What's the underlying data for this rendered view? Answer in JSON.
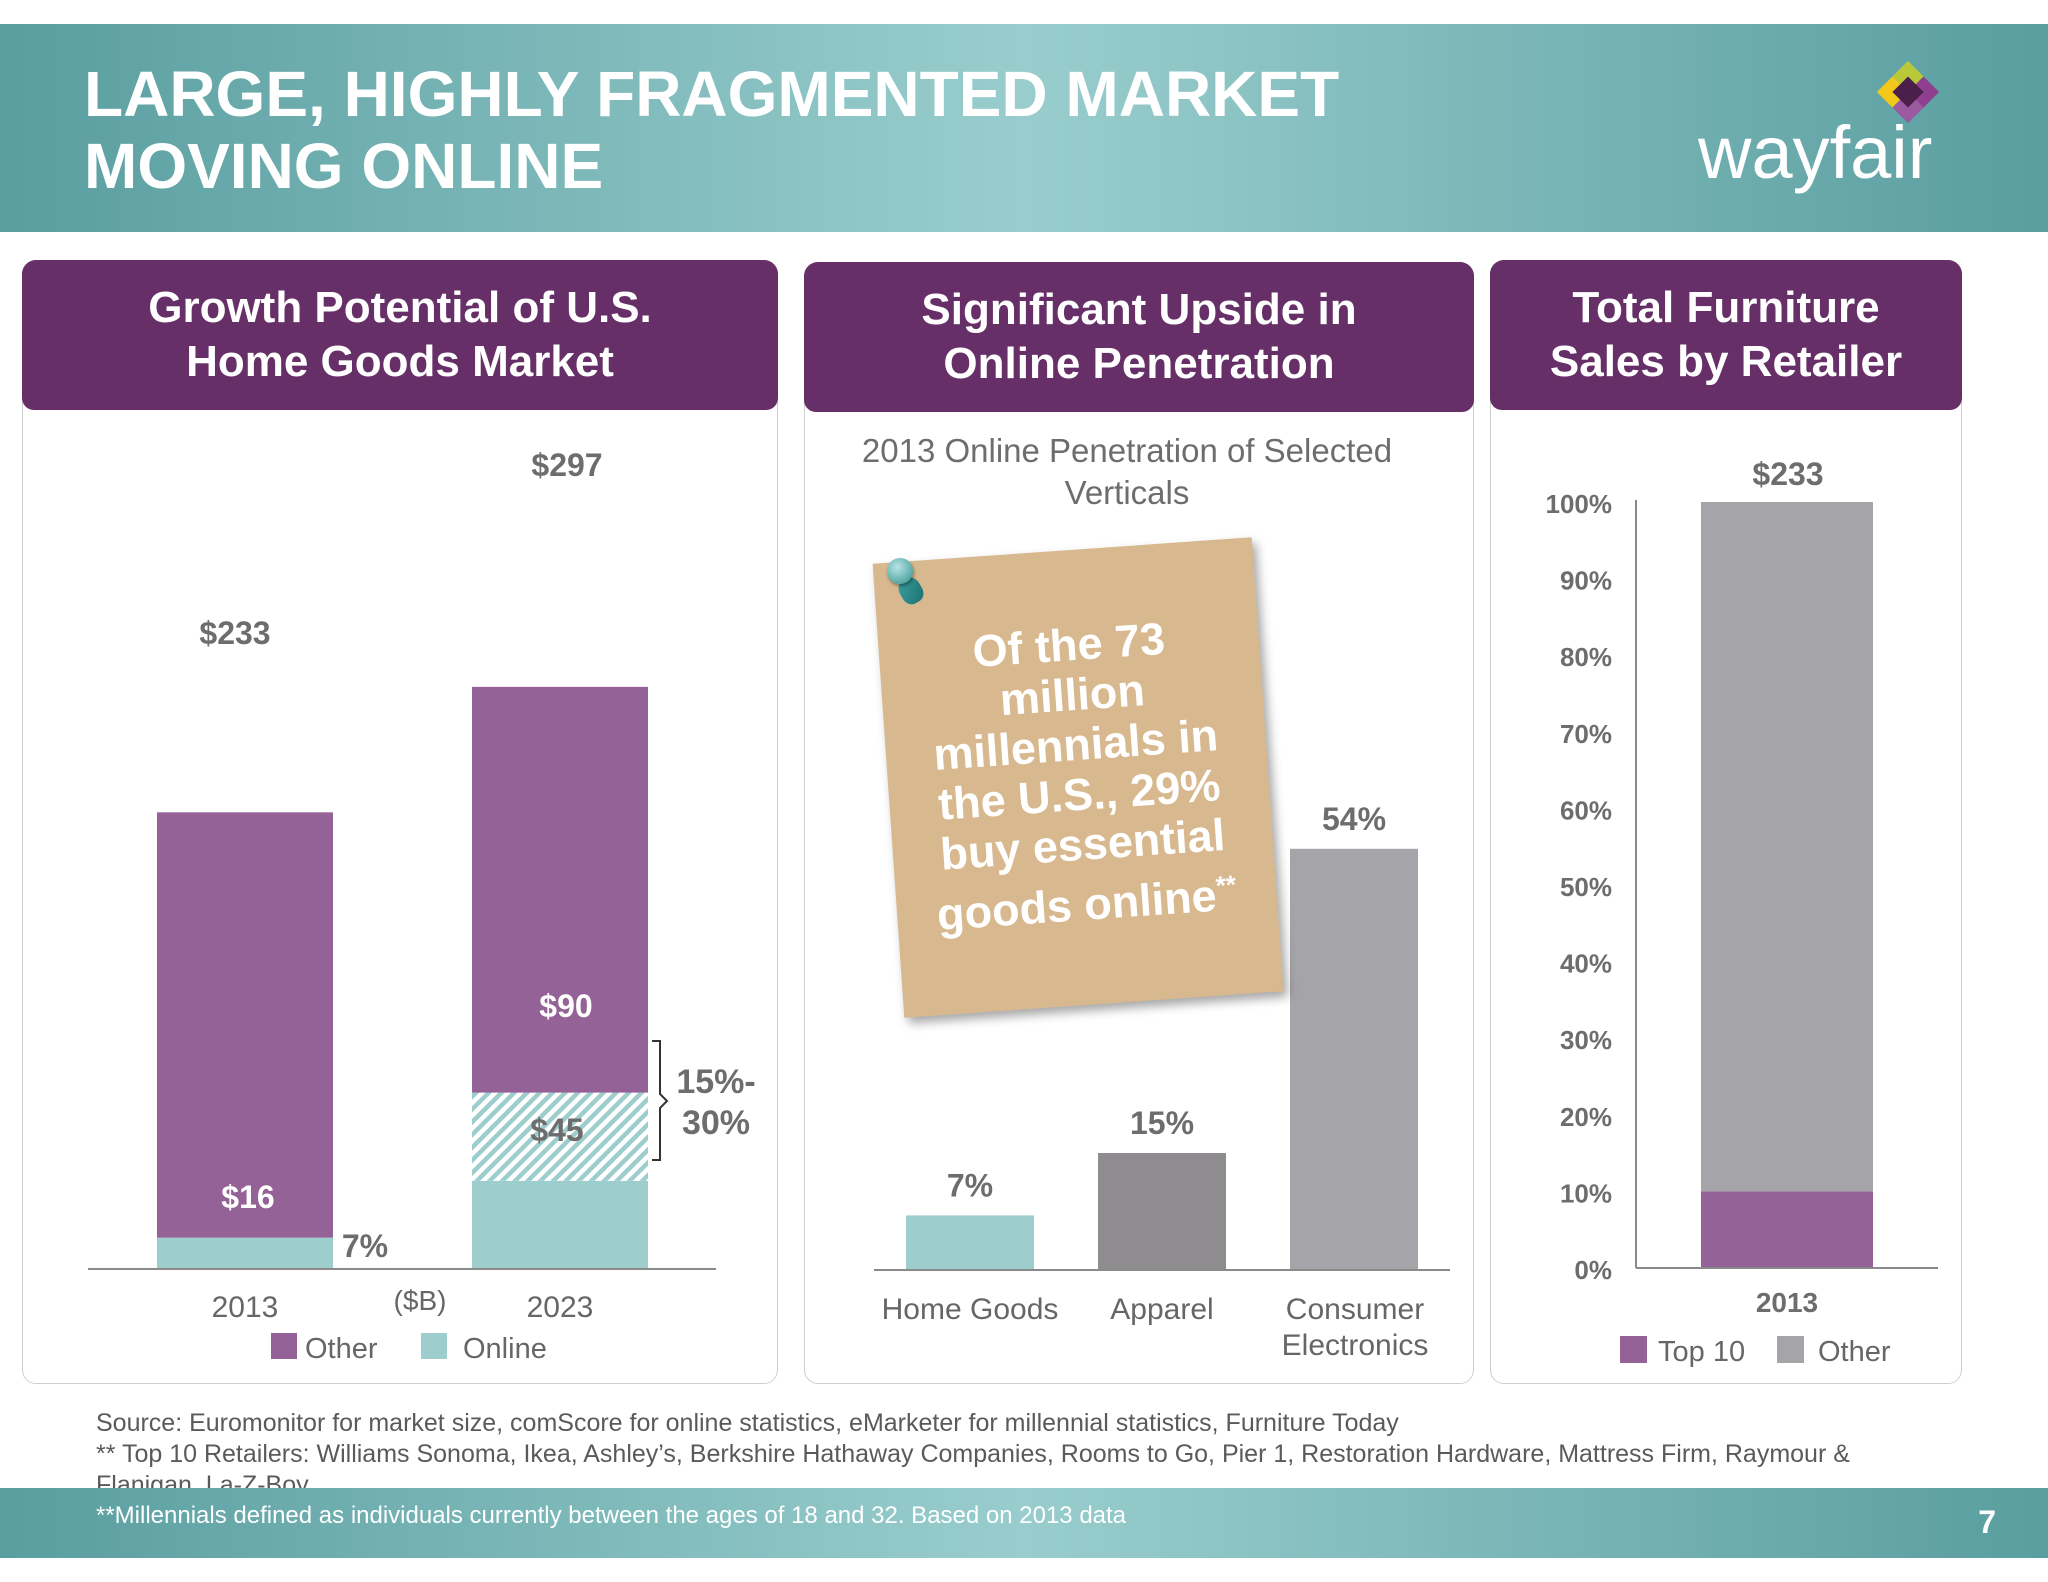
{
  "slide": {
    "title": "LARGE, HIGHLY FRAGMENTED MARKET\nMOVING ONLINE",
    "logo_text": "wayfair",
    "page_number": "7"
  },
  "colors": {
    "header_teal": "#5a9ea0",
    "panel_purple": "#672f67",
    "bar_purple": "#946296",
    "bar_teal": "#9ecdcd",
    "bar_gray": "#a5a4a8",
    "bar_dark_gray": "#8e8c8f"
  },
  "panels": {
    "growth": {
      "title": "Growth Potential of U.S.\nHome Goods Market"
    },
    "online": {
      "title": "Significant Upside in\nOnline Penetration"
    },
    "retailer": {
      "title": "Total Furniture\nSales by Retailer"
    }
  },
  "postit": {
    "text": "Of the 73 million millennials in the U.S., 29% buy essential goods online",
    "marker": "**"
  },
  "chart_data": [
    {
      "type": "bar",
      "stacked": true,
      "categories": [
        "2013",
        "2023"
      ],
      "series": [
        {
          "name": "Online",
          "values": [
            16,
            45
          ]
        },
        {
          "name": "Online (upside)",
          "values": [
            0,
            45
          ]
        },
        {
          "name": "Other",
          "values": [
            217,
            207
          ]
        }
      ],
      "totals": [
        "$233",
        "$297"
      ],
      "data_labels": {
        "online_2013": "$16",
        "pct_2013": "7%",
        "online_2023": "$45",
        "upside_2023": "$90",
        "total_2013": "$233",
        "total_2023": "$297"
      },
      "bracket_label": "15%-\n30%",
      "unit_label": "($B)",
      "legend": [
        "Other",
        "Online"
      ],
      "legend_position": "bottom"
    },
    {
      "type": "bar",
      "title": "2013 Online Penetration of Selected\nVerticals",
      "categories": [
        "Home Goods",
        "Apparel",
        "Consumer\nElectronics"
      ],
      "values": [
        7,
        15,
        54
      ],
      "data_labels": [
        "7%",
        "15%",
        "54%"
      ],
      "ylim": [
        0,
        60
      ]
    },
    {
      "type": "bar",
      "stacked": true,
      "categories": [
        "2013"
      ],
      "series": [
        {
          "name": "Top 10",
          "values": [
            10
          ]
        },
        {
          "name": "Other",
          "values": [
            90
          ]
        }
      ],
      "total_label": "$233",
      "yticks": [
        "0%",
        "10%",
        "20%",
        "30%",
        "40%",
        "50%",
        "60%",
        "70%",
        "80%",
        "90%",
        "100%"
      ],
      "ylim": [
        0,
        100
      ],
      "legend": [
        "Top 10",
        "Other"
      ],
      "legend_position": "bottom"
    }
  ],
  "footer": {
    "source": "Source: Euromonitor for market size, comScore for online statistics, eMarketer for millennial statistics, Furniture Today",
    "retailers": "** Top 10 Retailers: Williams Sonoma, Ikea, Ashley’s, Berkshire Hathaway Companies, Rooms to Go, Pier 1, Restoration Hardware, Mattress Firm, Raymour &",
    "retailers_cont": "Flanigan, La-Z-Boy",
    "note": "**Millennials defined as individuals currently between the ages of 18 and 32.  Based on 2013 data"
  }
}
